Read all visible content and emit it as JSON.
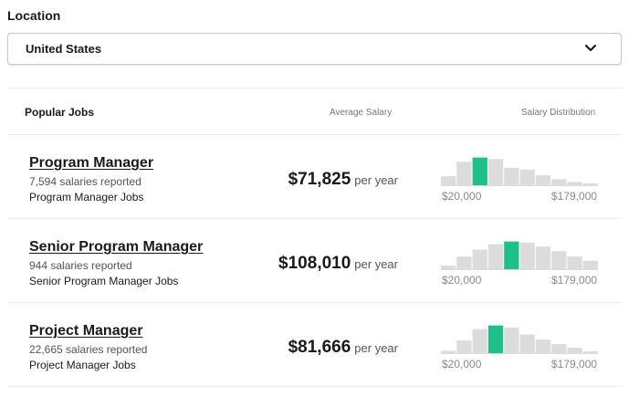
{
  "location": {
    "label": "Location",
    "selected": "United States"
  },
  "table": {
    "header": {
      "jobs": "Popular Jobs",
      "average_salary": "Average Salary",
      "distribution": "Salary Distribution"
    },
    "rows": [
      {
        "title": "Program Manager",
        "count": "7,594 salaries reported",
        "link": "Program Manager Jobs",
        "salary": "$71,825",
        "unit": "per year",
        "hist_min": "$20,000",
        "hist_max": "$179,000",
        "distribution": [
          0.3,
          0.78,
          0.92,
          0.87,
          0.58,
          0.52,
          0.33,
          0.2,
          0.11,
          0.06
        ],
        "highlight_index": 2
      },
      {
        "title": "Senior Program Manager",
        "count": "944 salaries reported",
        "link": "Senior Program Manager Jobs",
        "salary": "$108,010",
        "unit": "per year",
        "hist_min": "$20,000",
        "hist_max": "$179,000",
        "distribution": [
          0.12,
          0.42,
          0.65,
          0.83,
          0.92,
          0.88,
          0.75,
          0.6,
          0.42,
          0.28
        ],
        "highlight_index": 4
      },
      {
        "title": "Project Manager",
        "count": "22,665 salaries reported",
        "link": "Project Manager Jobs",
        "salary": "$81,666",
        "unit": "per year",
        "hist_min": "$20,000",
        "hist_max": "$179,000",
        "distribution": [
          0.08,
          0.42,
          0.8,
          0.92,
          0.85,
          0.62,
          0.45,
          0.3,
          0.18,
          0.06
        ],
        "highlight_index": 3
      }
    ]
  },
  "colors": {
    "highlight": "#1dbf8a",
    "bar": "#dcdcdc"
  },
  "icons": {
    "dropdown": "chevron-down-icon"
  }
}
